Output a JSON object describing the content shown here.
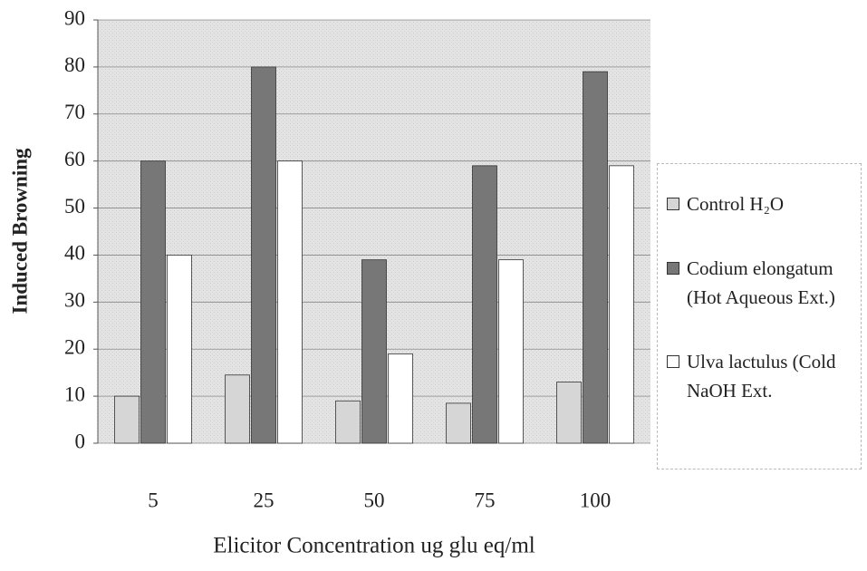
{
  "chart_data": {
    "type": "bar",
    "xlabel": "Elicitor Concentration ug glu eq/ml",
    "ylabel": "Induced Browning",
    "categories": [
      "5",
      "25",
      "50",
      "75",
      "100"
    ],
    "series": [
      {
        "name": "Control H₂O",
        "color": "#d6d6d6",
        "values": [
          10,
          14.5,
          9,
          8.5,
          13
        ]
      },
      {
        "name": "Codium elongatum (Hot Aqueous Ext.)",
        "color": "#777777",
        "values": [
          60,
          80,
          39,
          59,
          79
        ]
      },
      {
        "name": "Ulva lactulus (Cold NaOH Ext.",
        "color": "#ffffff",
        "values": [
          40,
          60,
          19,
          39,
          59
        ]
      }
    ],
    "ylim": [
      0,
      90
    ],
    "yticks": [
      0,
      10,
      20,
      30,
      40,
      50,
      60,
      70,
      80,
      90
    ],
    "grid": true,
    "legend": "right"
  }
}
